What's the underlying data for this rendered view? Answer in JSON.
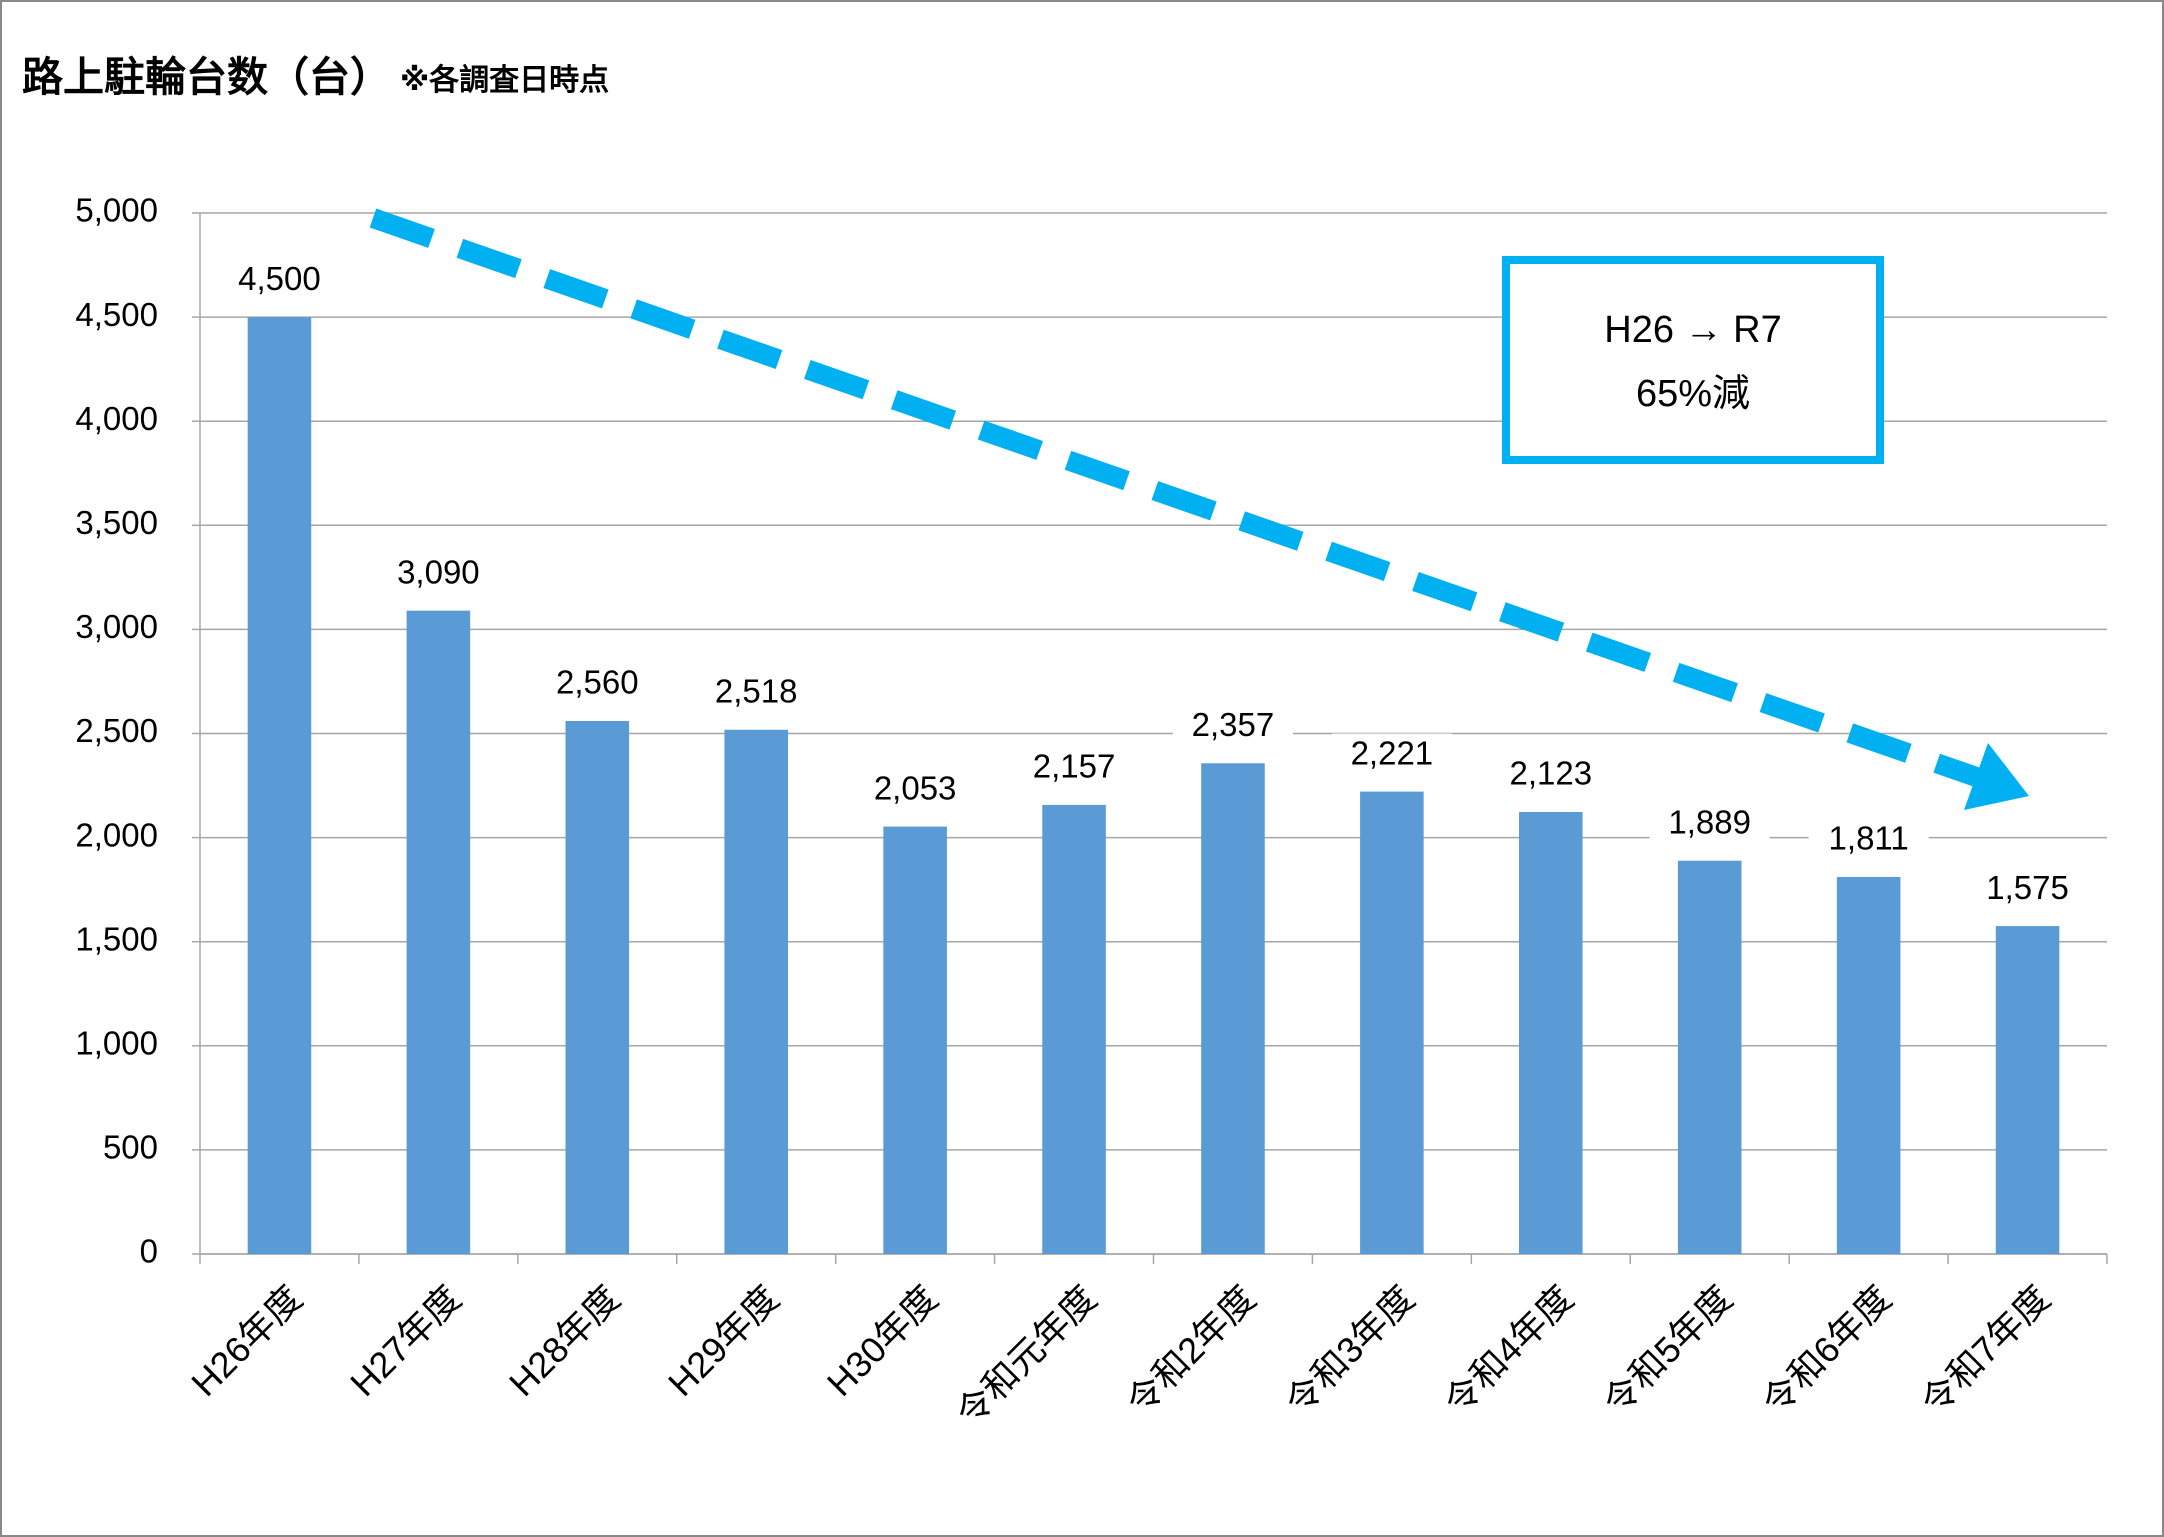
{
  "chart_data": {
    "type": "bar",
    "title": "路上駐輪台数（台）",
    "subtitle": "※各調査日時点",
    "annotations": [
      "H26 → R7",
      "65%減"
    ],
    "categories": [
      "H26年度",
      "H27年度",
      "H28年度",
      "H29年度",
      "H30年度",
      "令和元年度",
      "令和2年度",
      "令和3年度",
      "令和4年度",
      "令和5年度",
      "令和6年度",
      "令和7年度"
    ],
    "values": [
      4500,
      3090,
      2560,
      2518,
      2053,
      2157,
      2357,
      2221,
      2123,
      1889,
      1811,
      1575
    ],
    "value_labels": [
      "4,500",
      "3,090",
      "2,560",
      "2,518",
      "2,053",
      "2,157",
      "2,357",
      "2,221",
      "2,123",
      "1,889",
      "1,811",
      "1,575"
    ],
    "color": "#5b9bd5",
    "ylim": [
      0,
      5000
    ],
    "yticks": [
      0,
      500,
      {
        "value": 1000,
        "label": "1,000"
      },
      {
        "value": 1500,
        "label": "1,500"
      },
      {
        "value": 2000,
        "label": "2,000"
      },
      {
        "value": 2500,
        "label": "2,500"
      },
      {
        "value": 3000,
        "label": "3,000"
      },
      {
        "value": 3500,
        "label": "3,500"
      },
      {
        "value": 4000,
        "label": "4,000"
      },
      {
        "value": 4500,
        "label": "4,500"
      },
      {
        "value": 5000,
        "label": "5,000"
      }
    ],
    "grid": true
  }
}
